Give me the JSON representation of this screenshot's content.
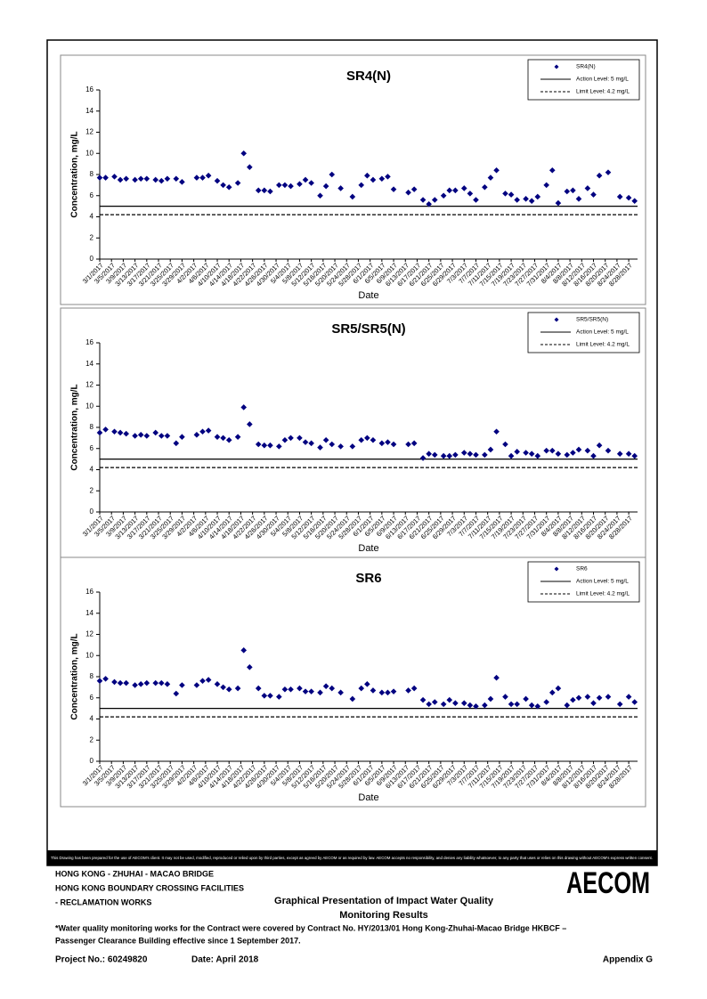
{
  "chart_data": [
    {
      "type": "scatter",
      "title": "SR4(N)",
      "x_label": "Date",
      "y_label": "Concentration, mg/L",
      "x": [
        "3/1/2017",
        "3/3/2017",
        "3/6/2017",
        "3/8/2017",
        "3/10/2017",
        "3/13/2017",
        "3/15/2017",
        "3/17/2017",
        "3/20/2017",
        "3/22/2017",
        "3/24/2017",
        "3/27/2017",
        "3/29/2017",
        "4/3/2017",
        "4/5/2017",
        "4/7/2017",
        "4/10/2017",
        "4/12/2017",
        "4/14/2017",
        "4/17/2017",
        "4/19/2017",
        "4/21/2017",
        "4/24/2017",
        "4/26/2017",
        "4/28/2017",
        "5/1/2017",
        "5/3/2017",
        "5/5/2017",
        "5/8/2017",
        "5/10/2017",
        "5/12/2017",
        "5/15/2017",
        "5/17/2017",
        "5/19/2017",
        "5/22/2017",
        "5/26/2017",
        "5/29/2017",
        "5/31/2017",
        "6/2/2017",
        "6/5/2017",
        "6/7/2017",
        "6/9/2017",
        "6/14/2017",
        "6/16/2017",
        "6/19/2017",
        "6/21/2017",
        "6/23/2017",
        "6/26/2017",
        "6/28/2017",
        "6/30/2017",
        "7/3/2017",
        "7/5/2017",
        "7/7/2017",
        "7/10/2017",
        "7/12/2017",
        "7/14/2017",
        "7/17/2017",
        "7/19/2017",
        "7/21/2017",
        "7/24/2017",
        "7/26/2017",
        "7/28/2017",
        "7/31/2017",
        "8/2/2017",
        "8/4/2017",
        "8/7/2017",
        "8/9/2017",
        "8/11/2017",
        "8/14/2017",
        "8/16/2017",
        "8/18/2017",
        "8/21/2017",
        "8/25/2017",
        "8/28/2017",
        "8/30/2017"
      ],
      "series": [
        {
          "name": "SR4(N)",
          "color": "#000080",
          "values": [
            7.7,
            7.7,
            7.8,
            7.5,
            7.6,
            7.5,
            7.6,
            7.6,
            7.5,
            7.4,
            7.6,
            7.6,
            7.3,
            7.7,
            7.7,
            7.9,
            7.4,
            7.0,
            6.8,
            7.2,
            10.0,
            8.7,
            6.5,
            6.5,
            6.4,
            7.0,
            7.0,
            6.9,
            7.1,
            7.5,
            7.2,
            6.0,
            6.9,
            8.0,
            6.7,
            5.9,
            7.0,
            7.9,
            7.5,
            7.6,
            7.8,
            6.6,
            6.3,
            6.6,
            5.6,
            5.2,
            5.6,
            6.0,
            6.5,
            6.5,
            6.7,
            6.2,
            5.6,
            6.8,
            7.7,
            8.4,
            6.2,
            6.1,
            5.6,
            5.7,
            5.5,
            5.9,
            7.0,
            8.4,
            5.3,
            6.4,
            6.5,
            5.7,
            6.7,
            6.1,
            7.9,
            8.2,
            5.9,
            5.8,
            5.5
          ]
        }
      ],
      "reference_lines": [
        {
          "label": "Action Level: 5 mg/L",
          "value": 5,
          "style": "solid"
        },
        {
          "label": "Limit Level: 4.2 mg/L",
          "value": 4.2,
          "style": "dashed"
        }
      ],
      "xlim": [
        "3/1/2017",
        "8/31/2017"
      ],
      "xticks": [
        "3/1/2017",
        "3/5/2017",
        "3/9/2017",
        "3/13/2017",
        "3/17/2017",
        "3/21/2017",
        "3/25/2017",
        "3/29/2017",
        "4/2/2017",
        "4/6/2017",
        "4/10/2017",
        "4/14/2017",
        "4/18/2017",
        "4/22/2017",
        "4/26/2017",
        "4/30/2017",
        "5/4/2017",
        "5/8/2017",
        "5/12/2017",
        "5/16/2017",
        "5/20/2017",
        "5/24/2017",
        "5/28/2017",
        "6/1/2017",
        "6/5/2017",
        "6/9/2017",
        "6/13/2017",
        "6/17/2017",
        "6/21/2017",
        "6/25/2017",
        "6/29/2017",
        "7/3/2017",
        "7/7/2017",
        "7/11/2017",
        "7/15/2017",
        "7/19/2017",
        "7/23/2017",
        "7/27/2017",
        "7/31/2017",
        "8/4/2017",
        "8/8/2017",
        "8/12/2017",
        "8/16/2017",
        "8/20/2017",
        "8/24/2017",
        "8/28/2017"
      ],
      "ylim": [
        0,
        16
      ],
      "yticks": [
        0,
        2,
        4,
        6,
        8,
        10,
        12,
        14,
        16
      ],
      "grid": false,
      "legend": "upper right"
    },
    {
      "type": "scatter",
      "title": "SR5/SR5(N)",
      "x_label": "Date",
      "y_label": "Concentration, mg/L",
      "x": [
        "3/1/2017",
        "3/3/2017",
        "3/6/2017",
        "3/8/2017",
        "3/10/2017",
        "3/13/2017",
        "3/15/2017",
        "3/17/2017",
        "3/20/2017",
        "3/22/2017",
        "3/24/2017",
        "3/27/2017",
        "3/29/2017",
        "4/3/2017",
        "4/5/2017",
        "4/7/2017",
        "4/10/2017",
        "4/12/2017",
        "4/14/2017",
        "4/17/2017",
        "4/19/2017",
        "4/21/2017",
        "4/24/2017",
        "4/26/2017",
        "4/28/2017",
        "5/1/2017",
        "5/3/2017",
        "5/5/2017",
        "5/8/2017",
        "5/10/2017",
        "5/12/2017",
        "5/15/2017",
        "5/17/2017",
        "5/19/2017",
        "5/22/2017",
        "5/26/2017",
        "5/29/2017",
        "5/31/2017",
        "6/2/2017",
        "6/5/2017",
        "6/7/2017",
        "6/9/2017",
        "6/14/2017",
        "6/16/2017",
        "6/19/2017",
        "6/21/2017",
        "6/23/2017",
        "6/26/2017",
        "6/28/2017",
        "6/30/2017",
        "7/3/2017",
        "7/5/2017",
        "7/7/2017",
        "7/10/2017",
        "7/12/2017",
        "7/14/2017",
        "7/17/2017",
        "7/19/2017",
        "7/21/2017",
        "7/24/2017",
        "7/26/2017",
        "7/28/2017",
        "7/31/2017",
        "8/2/2017",
        "8/4/2017",
        "8/7/2017",
        "8/9/2017",
        "8/11/2017",
        "8/14/2017",
        "8/16/2017",
        "8/18/2017",
        "8/21/2017",
        "8/25/2017",
        "8/28/2017",
        "8/30/2017"
      ],
      "series": [
        {
          "name": "SR5/SR5(N)",
          "color": "#000080",
          "values": [
            7.5,
            7.8,
            7.6,
            7.5,
            7.4,
            7.2,
            7.3,
            7.2,
            7.5,
            7.2,
            7.2,
            6.5,
            7.1,
            7.3,
            7.6,
            7.7,
            7.1,
            7.0,
            6.8,
            7.1,
            9.9,
            8.3,
            6.4,
            6.3,
            6.3,
            6.2,
            6.8,
            7.0,
            7.0,
            6.6,
            6.5,
            6.1,
            6.8,
            6.4,
            6.2,
            6.2,
            6.8,
            7.0,
            6.8,
            6.5,
            6.6,
            6.4,
            6.4,
            6.5,
            5.1,
            5.5,
            5.4,
            5.3,
            5.3,
            5.4,
            5.6,
            5.5,
            5.4,
            5.4,
            5.9,
            7.6,
            6.4,
            5.3,
            5.7,
            5.6,
            5.5,
            5.3,
            5.8,
            5.8,
            5.5,
            5.4,
            5.6,
            5.9,
            5.8,
            5.3,
            6.3,
            5.8,
            5.5,
            5.5,
            5.3
          ]
        }
      ],
      "reference_lines": [
        {
          "label": "Action Level: 5 mg/L",
          "value": 5,
          "style": "solid"
        },
        {
          "label": "Limit Level: 4.2 mg/L",
          "value": 4.2,
          "style": "dashed"
        }
      ],
      "xlim": [
        "3/1/2017",
        "8/31/2017"
      ],
      "xticks": [
        "3/1/2017",
        "3/5/2017",
        "3/9/2017",
        "3/13/2017",
        "3/17/2017",
        "3/21/2017",
        "3/25/2017",
        "3/29/2017",
        "4/2/2017",
        "4/6/2017",
        "4/10/2017",
        "4/14/2017",
        "4/18/2017",
        "4/22/2017",
        "4/26/2017",
        "4/30/2017",
        "5/4/2017",
        "5/8/2017",
        "5/12/2017",
        "5/16/2017",
        "5/20/2017",
        "5/24/2017",
        "5/28/2017",
        "6/1/2017",
        "6/5/2017",
        "6/9/2017",
        "6/13/2017",
        "6/17/2017",
        "6/21/2017",
        "6/25/2017",
        "6/29/2017",
        "7/3/2017",
        "7/7/2017",
        "7/11/2017",
        "7/15/2017",
        "7/19/2017",
        "7/23/2017",
        "7/27/2017",
        "7/31/2017",
        "8/4/2017",
        "8/8/2017",
        "8/12/2017",
        "8/16/2017",
        "8/20/2017",
        "8/24/2017",
        "8/28/2017"
      ],
      "ylim": [
        0,
        16
      ],
      "yticks": [
        0,
        2,
        4,
        6,
        8,
        10,
        12,
        14,
        16
      ],
      "grid": false,
      "legend": "upper right"
    },
    {
      "type": "scatter",
      "title": "SR6",
      "x_label": "Date",
      "y_label": "Concentration, mg/L",
      "x": [
        "3/1/2017",
        "3/3/2017",
        "3/6/2017",
        "3/8/2017",
        "3/10/2017",
        "3/13/2017",
        "3/15/2017",
        "3/17/2017",
        "3/20/2017",
        "3/22/2017",
        "3/24/2017",
        "3/27/2017",
        "3/29/2017",
        "4/3/2017",
        "4/5/2017",
        "4/7/2017",
        "4/10/2017",
        "4/12/2017",
        "4/14/2017",
        "4/17/2017",
        "4/19/2017",
        "4/21/2017",
        "4/24/2017",
        "4/26/2017",
        "4/28/2017",
        "5/1/2017",
        "5/3/2017",
        "5/5/2017",
        "5/8/2017",
        "5/10/2017",
        "5/12/2017",
        "5/15/2017",
        "5/17/2017",
        "5/19/2017",
        "5/22/2017",
        "5/26/2017",
        "5/29/2017",
        "5/31/2017",
        "6/2/2017",
        "6/5/2017",
        "6/7/2017",
        "6/9/2017",
        "6/14/2017",
        "6/16/2017",
        "6/19/2017",
        "6/21/2017",
        "6/23/2017",
        "6/26/2017",
        "6/28/2017",
        "6/30/2017",
        "7/3/2017",
        "7/5/2017",
        "7/7/2017",
        "7/10/2017",
        "7/12/2017",
        "7/14/2017",
        "7/17/2017",
        "7/19/2017",
        "7/21/2017",
        "7/24/2017",
        "7/26/2017",
        "7/28/2017",
        "7/31/2017",
        "8/2/2017",
        "8/4/2017",
        "8/7/2017",
        "8/9/2017",
        "8/11/2017",
        "8/14/2017",
        "8/16/2017",
        "8/18/2017",
        "8/21/2017",
        "8/25/2017",
        "8/28/2017",
        "8/30/2017"
      ],
      "series": [
        {
          "name": "SR6",
          "color": "#000080",
          "values": [
            7.6,
            7.8,
            7.5,
            7.4,
            7.4,
            7.2,
            7.3,
            7.4,
            7.4,
            7.4,
            7.3,
            6.4,
            7.2,
            7.2,
            7.6,
            7.7,
            7.3,
            7.0,
            6.8,
            6.9,
            10.5,
            8.9,
            6.9,
            6.2,
            6.2,
            6.1,
            6.8,
            6.8,
            6.9,
            6.6,
            6.6,
            6.5,
            7.1,
            6.9,
            6.5,
            5.9,
            6.9,
            7.3,
            6.7,
            6.5,
            6.5,
            6.6,
            6.7,
            6.9,
            5.8,
            5.4,
            5.6,
            5.4,
            5.8,
            5.5,
            5.5,
            5.3,
            5.2,
            5.3,
            5.9,
            7.9,
            6.1,
            5.4,
            5.4,
            5.9,
            5.3,
            5.2,
            5.6,
            6.5,
            6.9,
            5.3,
            5.8,
            6.0,
            6.1,
            5.5,
            6.0,
            6.1,
            5.4,
            6.1,
            5.6
          ]
        }
      ],
      "reference_lines": [
        {
          "label": "Action Level: 5 mg/L",
          "value": 5,
          "style": "solid"
        },
        {
          "label": "Limit Level: 4.2 mg/L",
          "value": 4.2,
          "style": "dashed"
        }
      ],
      "xlim": [
        "3/1/2017",
        "8/31/2017"
      ],
      "xticks": [
        "3/1/2017",
        "3/5/2017",
        "3/9/2017",
        "3/13/2017",
        "3/17/2017",
        "3/21/2017",
        "3/25/2017",
        "3/29/2017",
        "4/2/2017",
        "4/6/2017",
        "4/10/2017",
        "4/14/2017",
        "4/18/2017",
        "4/22/2017",
        "4/26/2017",
        "4/30/2017",
        "5/4/2017",
        "5/8/2017",
        "5/12/2017",
        "5/16/2017",
        "5/20/2017",
        "5/24/2017",
        "5/28/2017",
        "6/1/2017",
        "6/5/2017",
        "6/9/2017",
        "6/13/2017",
        "6/17/2017",
        "6/21/2017",
        "6/25/2017",
        "6/29/2017",
        "7/3/2017",
        "7/7/2017",
        "7/11/2017",
        "7/15/2017",
        "7/19/2017",
        "7/23/2017",
        "7/27/2017",
        "7/31/2017",
        "8/4/2017",
        "8/8/2017",
        "8/12/2017",
        "8/16/2017",
        "8/20/2017",
        "8/24/2017",
        "8/28/2017"
      ],
      "ylim": [
        0,
        16
      ],
      "yticks": [
        0,
        2,
        4,
        6,
        8,
        10,
        12,
        14,
        16
      ],
      "grid": false,
      "legend": "upper right"
    }
  ],
  "footer": {
    "disclaimer": "This Drawing has been prepared for the use of AECOM's client. It may not be used, modified, reproduced or relied upon by third parties, except as agreed by AECOM or as required by law. AECOM accepts no responsibility, and denies any liability whatsoever, to any party that uses or relies on this drawing without AECOM's express written consent.",
    "project_lines": [
      "HONG KONG - ZHUHAI - MACAO BRIDGE",
      "HONG KONG BOUNDARY CROSSING FACILITIES",
      "- RECLAMATION WORKS"
    ],
    "heading": [
      "Graphical Presentation of Impact Water Quality",
      "Monitoring Results"
    ],
    "logo": "AECOM",
    "note": [
      "*Water quality monitoring works for the Contract were covered by Contract No. HY/2013/01 Hong Kong-Zhuhai-Macao Bridge HKBCF –",
      "Passenger Clearance Building effective since 1 September 2017."
    ],
    "project_no": "Project No.: 60249820",
    "date": "Date: April 2018",
    "appendix": "Appendix G"
  }
}
